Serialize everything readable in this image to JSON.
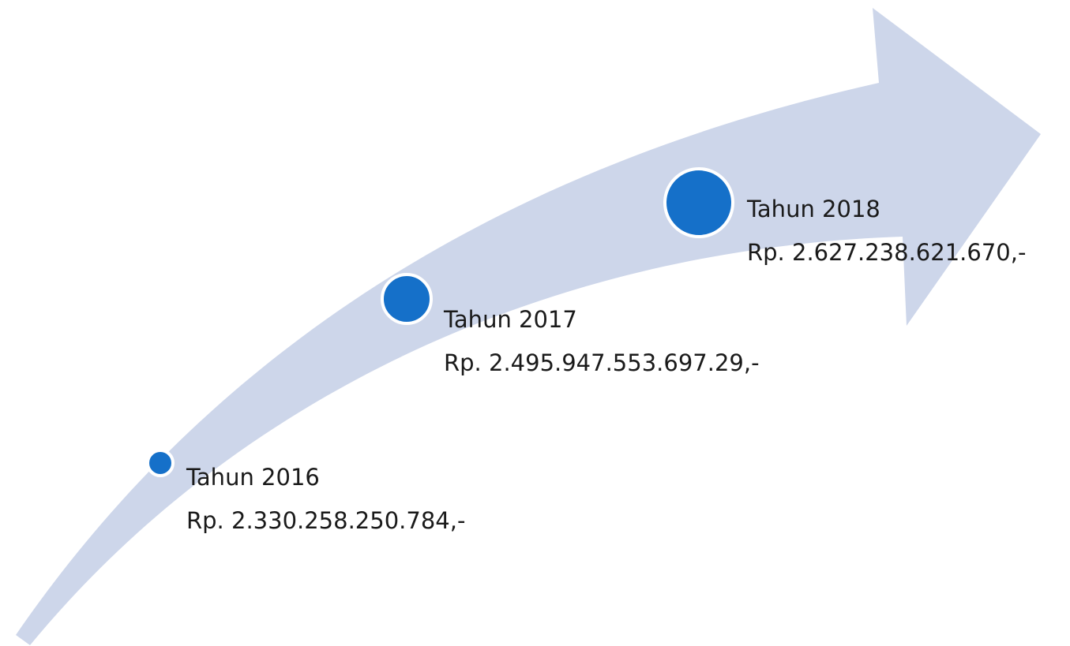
{
  "items": [
    {
      "label": "Tahun 2016",
      "amount": "Rp. 2.330.258.250.784,-"
    },
    {
      "label": "Tahun 2017",
      "amount": "Rp. 2.495.947.553.697.29,-"
    },
    {
      "label": "Tahun 2018",
      "amount": "Rp. 2.627.238.621.670,-"
    }
  ]
}
